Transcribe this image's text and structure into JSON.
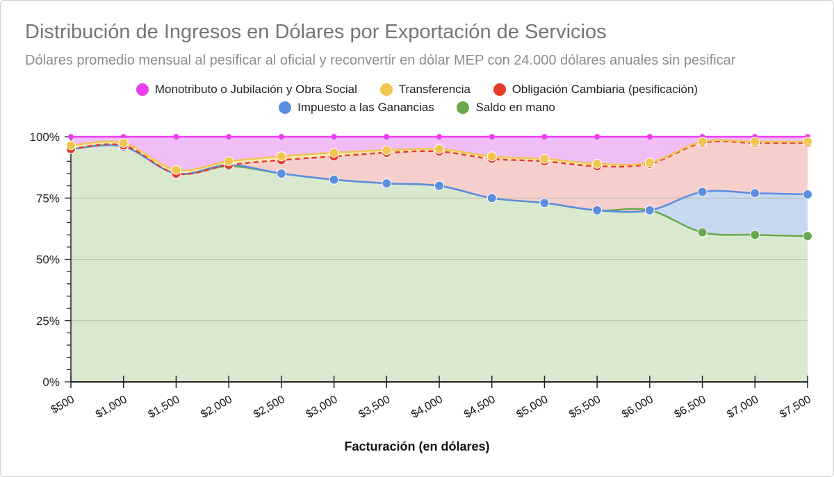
{
  "colors": {
    "monotributo": "#ea3ff0",
    "transferencia": "#f0c550",
    "obligacion": "#e63a2b",
    "impuesto": "#5b8de0",
    "saldo": "#6aa84f"
  },
  "chart_data": {
    "type": "area",
    "stacked": "percent",
    "title": "Distribución de Ingresos en Dólares por Exportación de Servicios",
    "subtitle": "Dólares promedio mensual al pesificar al oficial y reconvertir en dólar MEP con 24.000 dólares anuales sin pesificar",
    "xlabel": "Facturación (en dólares)",
    "ylabel": "",
    "ylim": [
      0,
      100
    ],
    "y_ticks": [
      "0%",
      "25%",
      "50%",
      "75%",
      "100%"
    ],
    "categories": [
      "$500",
      "$1,000",
      "$1,500",
      "$2,000",
      "$2,500",
      "$3,000",
      "$3,500",
      "$4,000",
      "$4,500",
      "$5,000",
      "$5,500",
      "$6,000",
      "$6,500",
      "$7,000",
      "$7,500"
    ],
    "legend": [
      {
        "key": "monotributo",
        "label": "Monotributo o Jubilación y Obra Social"
      },
      {
        "key": "transferencia",
        "label": "Transferencia"
      },
      {
        "key": "obligacion",
        "label": "Obligación Cambiaria (pesificación)"
      },
      {
        "key": "impuesto",
        "label": "Impuesto a las Ganancias"
      },
      {
        "key": "saldo",
        "label": "Saldo en mano"
      }
    ],
    "cumulative": {
      "saldo": [
        95,
        96,
        85,
        88,
        85,
        82.5,
        81,
        80,
        75,
        73,
        70,
        70,
        61,
        60,
        59.5
      ],
      "impuesto": [
        95,
        96,
        85,
        88.5,
        85,
        82.5,
        81,
        80,
        75,
        73,
        70,
        70,
        77.5,
        77,
        76.5
      ],
      "obligacion": [
        95,
        96.5,
        85,
        88.5,
        90.5,
        92,
        93.5,
        94,
        91,
        90,
        88,
        89,
        97.5,
        97.5,
        97.5
      ],
      "transferencia": [
        96.5,
        97.5,
        86.5,
        90,
        92,
        93.5,
        94.5,
        95,
        92,
        91,
        89,
        89.5,
        98,
        98,
        98
      ],
      "monotributo": [
        100,
        100,
        100,
        100,
        100,
        100,
        100,
        100,
        100,
        100,
        100,
        100,
        100,
        100,
        100
      ]
    }
  }
}
